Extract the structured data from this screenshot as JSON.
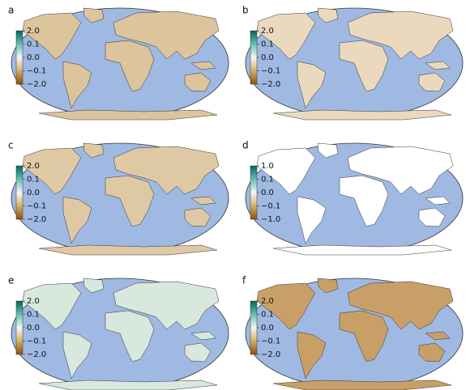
{
  "panels": [
    {
      "label": "a",
      "colorbar_ticks": [
        "2.0",
        "0.1",
        "0.0",
        "−0.1",
        "−2.0"
      ]
    },
    {
      "label": "b",
      "colorbar_ticks": [
        "2.0",
        "0.1",
        "0.0",
        "−0.1",
        "−2.0"
      ]
    },
    {
      "label": "c",
      "colorbar_ticks": [
        "2.0",
        "0.1",
        "0.0",
        "−0.1",
        "−2.0"
      ]
    },
    {
      "label": "d",
      "colorbar_ticks": [
        "1.0",
        "0.1",
        "0.0",
        "−0.1",
        "−1.0"
      ]
    },
    {
      "label": "e",
      "colorbar_ticks": [
        "2.0",
        "0.1",
        "0.0",
        "−0.1",
        "−2.0"
      ]
    },
    {
      "label": "f",
      "colorbar_ticks": [
        "2.0",
        "0.1",
        "0.0",
        "−0.1",
        "−2.0"
      ]
    }
  ]
}
